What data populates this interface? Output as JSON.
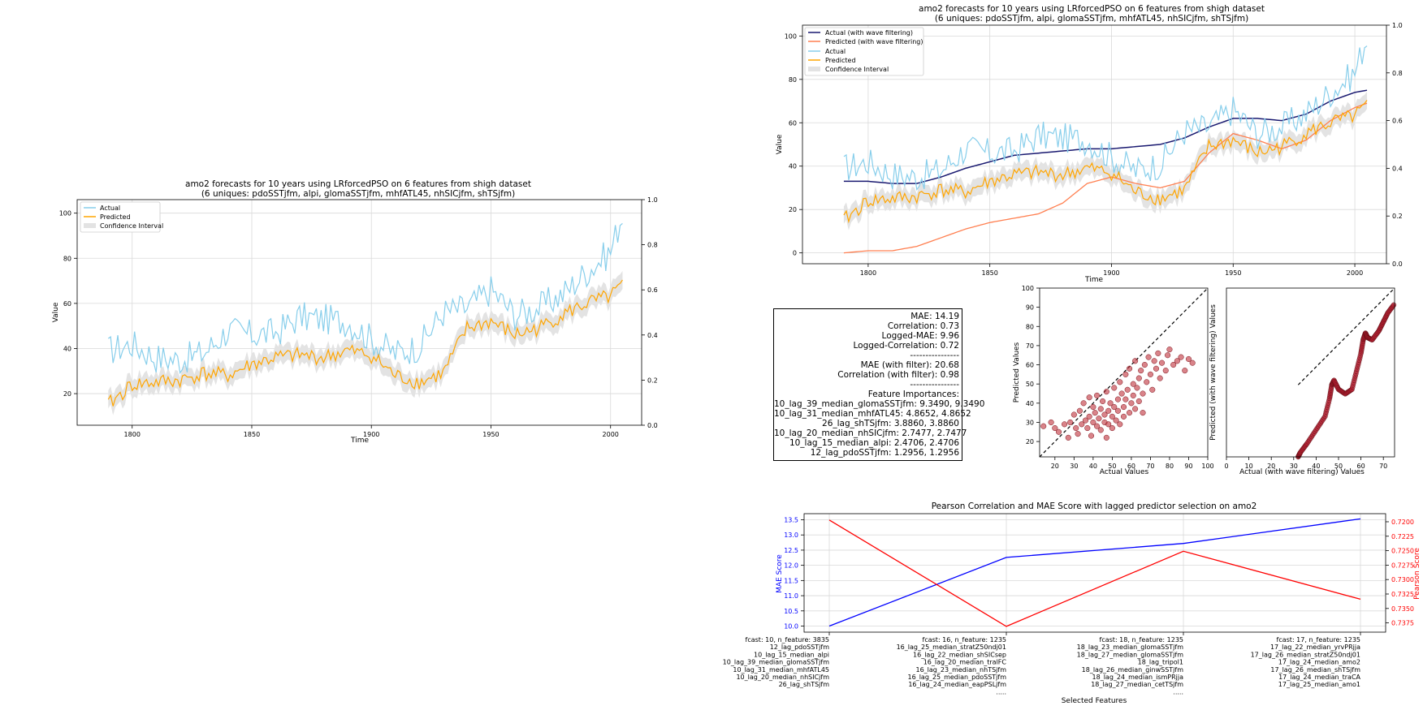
{
  "left_chart": {
    "title_line1": "amo2 forecasts for 10 years using LRforcedPSO on 6 features from shigh dataset",
    "title_line2": "(6 uniques: pdoSSTjfm, alpi, glomaSSTjfm, mhfATL45, nhSICjfm, shTSjfm)",
    "ylabel": "Value",
    "xlabel": "Time",
    "x_ticks": [
      "1800",
      "1850",
      "1900",
      "1950",
      "2000"
    ],
    "y_ticks": [
      "20",
      "40",
      "60",
      "80",
      "100"
    ],
    "y2_ticks": [
      "0.0",
      "0.2",
      "0.4",
      "0.6",
      "0.8",
      "1.0"
    ],
    "legend": [
      "Actual",
      "Predicted",
      "Confidence Interval"
    ]
  },
  "main_chart": {
    "title_line1": "amo2 forecasts for 10 years using LRforcedPSO on 6 features from shigh dataset",
    "title_line2": "(6 uniques: pdoSSTjfm, alpi, glomaSSTjfm, mhfATL45, nhSICjfm, shTSjfm)",
    "ylabel": "Value",
    "xlabel": "Time",
    "x_ticks": [
      "1800",
      "1850",
      "1900",
      "1950",
      "2000"
    ],
    "y_ticks": [
      "0",
      "20",
      "40",
      "60",
      "80",
      "100"
    ],
    "y2_ticks": [
      "0.0",
      "0.2",
      "0.4",
      "0.6",
      "0.8",
      "1.0"
    ],
    "legend": [
      "Actual (with wave filtering)",
      "Predicted (with wave filtering)",
      "Actual",
      "Predicted",
      "Confidence Interval"
    ]
  },
  "stats": {
    "lines": [
      "MAE: 14.19",
      "Correlation: 0.73",
      "Logged-MAE: 9.96",
      "Logged-Correlation: 0.72",
      "----------------",
      "MAE (with filter): 20.68",
      "Correlation (with filter): 0.98",
      "----------------",
      "",
      "Feature Importances:",
      "10_lag_39_median_glomaSSTjfm: 9.3490, 9.3490",
      "10_lag_31_median_mhfATL45: 4.8652, 4.8652",
      "26_lag_shTSjfm: 3.8860, 3.8860",
      "10_lag_20_median_nhSICjfm: 2.7477, 2.7477",
      "10_lag_15_median_alpi: 2.4706, 2.4706",
      "12_lag_pdoSSTjfm: 1.2956, 1.2956"
    ]
  },
  "scatter1": {
    "xlabel": "Actual Values",
    "ylabel": "Predicted Values",
    "x_ticks": [
      "20",
      "30",
      "40",
      "50",
      "60",
      "70",
      "80",
      "90",
      "100"
    ],
    "y_ticks": [
      "20",
      "30",
      "40",
      "50",
      "60",
      "70",
      "80",
      "90",
      "100"
    ]
  },
  "scatter2": {
    "xlabel": "Actual (with wave filtering) Values",
    "ylabel": "Predicted (with wave filtering) Values",
    "x_ticks": [
      "0",
      "10",
      "20",
      "30",
      "40",
      "50",
      "60",
      "70"
    ],
    "y_ticks": []
  },
  "bottom_chart": {
    "title": "Pearson Correlation and MAE Score with lagged predictor selection on amo2",
    "ylabel_left": "MAE Score",
    "ylabel_right": "Pearson Score",
    "xlabel": "Selected Features",
    "left_ticks": [
      "10.0",
      "10.5",
      "11.0",
      "11.5",
      "12.0",
      "12.5",
      "13.0",
      "13.5"
    ],
    "right_ticks": [
      "0.7200",
      "0.7225",
      "0.7250",
      "0.7275",
      "0.7300",
      "0.7325",
      "0.7350",
      "0.7375"
    ],
    "feature_labels": [
      [
        "fcast: 10, n_feature: 3835",
        "12_lag_pdoSSTjfm",
        "10_lag_15_median_alpi",
        "10_lag_39_median_glomaSSTjfm",
        "10_lag_31_median_mhfATL45",
        "10_lag_20_median_nhSICjfm",
        "26_lag_shTSjfm"
      ],
      [
        "fcast: 16, n_feature: 1235",
        "16_lag_25_median_stratZ50ndj01",
        "16_lag_22_median_shSICsep",
        "16_lag_20_median_tralFC",
        "16_lag_23_median_nhTSjfm",
        "16_lag_25_median_pdoSSTjfm",
        "16_lag_24_median_eapPSLjfm",
        "....."
      ],
      [
        "fcast: 18, n_feature: 1235",
        "18_lag_23_median_glomaSSTjfm",
        "18_lag_27_median_glomaSSTjfm",
        "18_lag_tripol1",
        "18_lag_26_median_ginwSSTjfm",
        "18_lag_24_median_ismPRjja",
        "18_lag_27_median_cetTSjfm",
        "....."
      ],
      [
        "fcast: 17, n_feature: 1235",
        "17_lag_22_median_yrvPRjja",
        "17_lag_26_median_stratZ50ndj01",
        "17_lag_24_median_amo2",
        "17_lag_26_median_shTSjfm",
        "17_lag_24_median_traCA",
        "17_lag_25_median_amo1"
      ]
    ]
  },
  "chart_data": [
    {
      "type": "line",
      "title": "amo2 forecasts for 10 years using LRforcedPSO on 6 features from shigh dataset",
      "xlabel": "Time",
      "ylabel": "Value",
      "xlim": [
        1777,
        2013
      ],
      "ylim": [
        6,
        106
      ],
      "series": [
        {
          "name": "Actual",
          "x": [
            1790,
            1800,
            1810,
            1820,
            1830,
            1840,
            1850,
            1860,
            1870,
            1880,
            1890,
            1900,
            1910,
            1920,
            1930,
            1940,
            1950,
            1960,
            1970,
            1980,
            1990,
            2000,
            2005
          ],
          "values": [
            39,
            42,
            36,
            35,
            38,
            48,
            46,
            47,
            54,
            53,
            52,
            44,
            38,
            41,
            56,
            58,
            66,
            55,
            58,
            64,
            74,
            83,
            100
          ]
        },
        {
          "name": "Predicted",
          "x": [
            1790,
            1800,
            1810,
            1820,
            1830,
            1840,
            1850,
            1860,
            1870,
            1880,
            1890,
            1900,
            1910,
            1920,
            1930,
            1940,
            1950,
            1960,
            1970,
            1980,
            1990,
            2000,
            2005
          ],
          "values": [
            15,
            24,
            25,
            26,
            29,
            28,
            33,
            36,
            37,
            36,
            39,
            37,
            28,
            25,
            29,
            49,
            52,
            46,
            49,
            55,
            60,
            63,
            68
          ]
        }
      ]
    },
    {
      "type": "line",
      "title": "amo2 forecasts for 10 years using LRforcedPSO on 6 features from shigh dataset",
      "xlabel": "Time",
      "ylabel": "Value",
      "xlim": [
        1773,
        2013
      ],
      "ylim": [
        -5,
        105
      ],
      "series": [
        {
          "name": "Actual (with wave filtering)",
          "x": [
            1790,
            1800,
            1810,
            1820,
            1830,
            1840,
            1850,
            1860,
            1870,
            1880,
            1890,
            1900,
            1910,
            1920,
            1930,
            1940,
            1950,
            1960,
            1970,
            1980,
            1990,
            2000,
            2005
          ],
          "values": [
            33,
            33,
            32,
            32,
            35,
            39,
            42,
            45,
            46,
            47,
            48,
            48,
            49,
            50,
            53,
            58,
            62,
            62,
            61,
            64,
            70,
            74,
            75
          ]
        },
        {
          "name": "Predicted (with wave filtering)",
          "x": [
            1790,
            1800,
            1810,
            1820,
            1830,
            1840,
            1850,
            1860,
            1870,
            1880,
            1890,
            1900,
            1910,
            1920,
            1930,
            1940,
            1950,
            1960,
            1970,
            1980,
            1990,
            2000,
            2005
          ],
          "values": [
            0,
            1,
            1,
            3,
            7,
            11,
            14,
            16,
            18,
            23,
            32,
            35,
            32,
            30,
            33,
            46,
            55,
            52,
            48,
            52,
            61,
            67,
            69
          ]
        },
        {
          "name": "Actual",
          "x": [
            1790,
            1800,
            1810,
            1820,
            1830,
            1840,
            1850,
            1860,
            1870,
            1880,
            1890,
            1900,
            1910,
            1920,
            1930,
            1940,
            1950,
            1960,
            1970,
            1980,
            1990,
            2000,
            2005
          ],
          "values": [
            39,
            42,
            36,
            35,
            38,
            48,
            46,
            47,
            54,
            53,
            52,
            44,
            38,
            41,
            56,
            58,
            66,
            55,
            58,
            64,
            74,
            83,
            100
          ]
        },
        {
          "name": "Predicted",
          "x": [
            1790,
            1800,
            1810,
            1820,
            1830,
            1840,
            1850,
            1860,
            1870,
            1880,
            1890,
            1900,
            1910,
            1920,
            1930,
            1940,
            1950,
            1960,
            1970,
            1980,
            1990,
            2000,
            2005
          ],
          "values": [
            15,
            24,
            25,
            26,
            29,
            28,
            33,
            36,
            37,
            36,
            39,
            37,
            28,
            25,
            29,
            49,
            52,
            46,
            49,
            55,
            60,
            63,
            68
          ]
        }
      ]
    },
    {
      "type": "scatter",
      "xlabel": "Actual Values",
      "ylabel": "Predicted Values",
      "xlim": [
        12,
        100
      ],
      "ylim": [
        12,
        100
      ],
      "points": [
        [
          14,
          28
        ],
        [
          18,
          30
        ],
        [
          20,
          27
        ],
        [
          22,
          25
        ],
        [
          25,
          29
        ],
        [
          27,
          22
        ],
        [
          28,
          30
        ],
        [
          30,
          34
        ],
        [
          31,
          27
        ],
        [
          32,
          24
        ],
        [
          33,
          36
        ],
        [
          34,
          29
        ],
        [
          35,
          40
        ],
        [
          36,
          31
        ],
        [
          37,
          27
        ],
        [
          38,
          33
        ],
        [
          38,
          43
        ],
        [
          39,
          23
        ],
        [
          40,
          38
        ],
        [
          40,
          30
        ],
        [
          41,
          35
        ],
        [
          42,
          28
        ],
        [
          42,
          44
        ],
        [
          43,
          32
        ],
        [
          44,
          37
        ],
        [
          44,
          26
        ],
        [
          45,
          41
        ],
        [
          46,
          30
        ],
        [
          46,
          34
        ],
        [
          47,
          22
        ],
        [
          47,
          46
        ],
        [
          48,
          36
        ],
        [
          48,
          29
        ],
        [
          49,
          40
        ],
        [
          50,
          33
        ],
        [
          50,
          27
        ],
        [
          51,
          48
        ],
        [
          51,
          38
        ],
        [
          52,
          31
        ],
        [
          53,
          42
        ],
        [
          53,
          36
        ],
        [
          54,
          51
        ],
        [
          54,
          29
        ],
        [
          55,
          45
        ],
        [
          56,
          38
        ],
        [
          56,
          33
        ],
        [
          57,
          55
        ],
        [
          57,
          42
        ],
        [
          58,
          47
        ],
        [
          59,
          35
        ],
        [
          59,
          58
        ],
        [
          60,
          40
        ],
        [
          61,
          50
        ],
        [
          61,
          44
        ],
        [
          62,
          37
        ],
        [
          62,
          62
        ],
        [
          63,
          48
        ],
        [
          64,
          53
        ],
        [
          64,
          41
        ],
        [
          65,
          57
        ],
        [
          66,
          45
        ],
        [
          66,
          35
        ],
        [
          67,
          60
        ],
        [
          68,
          51
        ],
        [
          69,
          64
        ],
        [
          70,
          55
        ],
        [
          71,
          47
        ],
        [
          72,
          62
        ],
        [
          73,
          58
        ],
        [
          74,
          66
        ],
        [
          75,
          53
        ],
        [
          76,
          61
        ],
        [
          78,
          57
        ],
        [
          79,
          65
        ],
        [
          80,
          68
        ],
        [
          82,
          60
        ],
        [
          84,
          62
        ],
        [
          86,
          64
        ],
        [
          88,
          57
        ],
        [
          90,
          63
        ],
        [
          92,
          61
        ]
      ]
    },
    {
      "type": "scatter",
      "xlabel": "Actual (with wave filtering) Values",
      "ylabel": "Predicted (with wave filtering) Values",
      "xlim": [
        0,
        75
      ],
      "ylim": [
        0,
        75
      ],
      "points": [
        [
          32,
          0
        ],
        [
          33,
          2
        ],
        [
          36,
          6
        ],
        [
          40,
          12
        ],
        [
          44,
          18
        ],
        [
          46,
          26
        ],
        [
          47,
          32
        ],
        [
          48,
          34
        ],
        [
          50,
          30
        ],
        [
          53,
          28
        ],
        [
          56,
          30
        ],
        [
          58,
          38
        ],
        [
          60,
          46
        ],
        [
          61,
          52
        ],
        [
          62,
          55
        ],
        [
          63,
          53
        ],
        [
          65,
          52
        ],
        [
          68,
          56
        ],
        [
          70,
          60
        ],
        [
          72,
          64
        ],
        [
          75,
          68
        ]
      ]
    },
    {
      "type": "line",
      "title": "Pearson Correlation and MAE Score with lagged predictor selection on amo2",
      "categories": [
        "fcast: 10, n_feature: 3835",
        "fcast: 16, n_feature: 1235",
        "fcast: 18, n_feature: 1235",
        "fcast: 17, n_feature: 1235"
      ],
      "series": [
        {
          "name": "MAE Score",
          "axis": "left",
          "values": [
            10.0,
            12.26,
            12.72,
            13.53
          ],
          "ylim": [
            9.8,
            13.7
          ]
        },
        {
          "name": "Pearson Score",
          "axis": "right",
          "values": [
            0.7197,
            0.7381,
            0.7251,
            0.7334
          ],
          "ylim_inverted": [
            0.7186,
            0.7391
          ]
        }
      ],
      "xlabel": "Selected Features",
      "ylabel_left": "MAE Score",
      "ylabel_right": "Pearson Score"
    }
  ]
}
